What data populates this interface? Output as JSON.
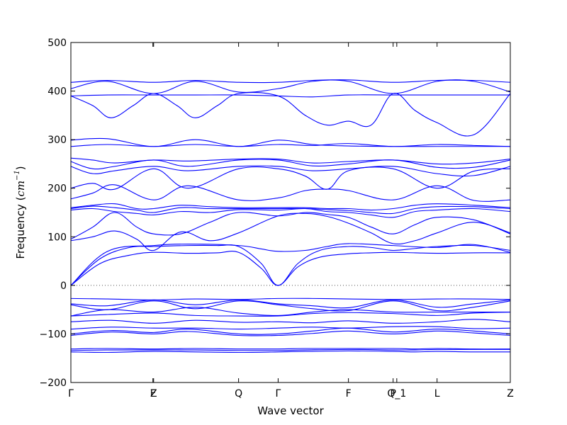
{
  "chart_data": {
    "type": "line",
    "title": "",
    "xlabel": "Wave vector",
    "ylabel": {
      "prefix": "Frequency (",
      "unit_base": "cm",
      "unit_exp": "−1",
      "suffix": ")"
    },
    "ylim": [
      -200,
      500
    ],
    "yticks": [
      -200,
      -100,
      0,
      100,
      200,
      300,
      400,
      500
    ],
    "xlim": [
      0,
      6.0
    ],
    "grid": false,
    "zero_line": 0,
    "line_color": "#0000ff",
    "zero_line_color": "#555555",
    "xticks": [
      {
        "x": 0.0,
        "label": "Γ"
      },
      {
        "x": 1.12,
        "label": "F"
      },
      {
        "x": 1.13,
        "label": "Z"
      },
      {
        "x": 2.29,
        "label": "Q"
      },
      {
        "x": 2.83,
        "label": "Γ"
      },
      {
        "x": 3.79,
        "label": "F"
      },
      {
        "x": 4.4,
        "label": "P"
      },
      {
        "x": 4.45,
        "label": "Q_1"
      },
      {
        "x": 5.0,
        "label": "L"
      },
      {
        "x": 6.0,
        "label": "Z"
      }
    ],
    "series": [
      {
        "x": [
          0,
          0.5,
          1.13,
          1.7,
          2.29,
          2.83,
          3.2,
          3.79,
          4.4,
          4.7,
          5.0,
          5.5,
          6.0
        ],
        "y": [
          -137,
          -138,
          -136,
          -137,
          -138,
          -137,
          -136,
          -135,
          -136,
          -137,
          -136,
          -137,
          -137
        ]
      },
      {
        "x": [
          0,
          0.5,
          1.13,
          1.7,
          2.29,
          2.83,
          3.2,
          3.79,
          4.4,
          4.7,
          5.0,
          5.5,
          6.0
        ],
        "y": [
          -134,
          -133,
          -133,
          -133,
          -134,
          -134,
          -133,
          -132,
          -133,
          -133,
          -132,
          -132,
          -132
        ]
      },
      {
        "x": [
          0,
          0.5,
          1.13,
          1.7,
          2.29,
          2.83,
          3.2,
          3.79,
          4.4,
          4.7,
          5.0,
          5.5,
          6.0
        ],
        "y": [
          -131,
          -130,
          -131,
          -130,
          -131,
          -131,
          -130,
          -130,
          -130,
          -131,
          -130,
          -131,
          -131
        ]
      },
      {
        "x": [
          0,
          0.55,
          1.13,
          1.6,
          2.29,
          2.83,
          3.3,
          3.79,
          4.4,
          5.0,
          5.5,
          6.0
        ],
        "y": [
          -103,
          -96,
          -100,
          -95,
          -103,
          -103,
          -99,
          -94,
          -100,
          -94,
          -98,
          -103
        ]
      },
      {
        "x": [
          0,
          0.55,
          1.13,
          1.6,
          2.29,
          2.83,
          3.3,
          3.79,
          4.4,
          5.0,
          5.5,
          6.0
        ],
        "y": [
          -100,
          -93,
          -97,
          -90,
          -100,
          -100,
          -94,
          -88,
          -96,
          -90,
          -94,
          -100
        ]
      },
      {
        "x": [
          0,
          0.55,
          1.13,
          1.7,
          2.29,
          2.83,
          3.3,
          3.79,
          4.4,
          5.0,
          5.5,
          6.0
        ],
        "y": [
          -90,
          -86,
          -88,
          -88,
          -90,
          -88,
          -86,
          -88,
          -85,
          -85,
          -89,
          -88
        ]
      },
      {
        "x": [
          0,
          0.55,
          1.13,
          1.7,
          2.29,
          2.83,
          3.3,
          3.79,
          4.4,
          5.0,
          5.5,
          6.0
        ],
        "y": [
          -75,
          -72,
          -78,
          -72,
          -76,
          -75,
          -77,
          -73,
          -78,
          -75,
          -70,
          -75
        ]
      },
      {
        "x": [
          0,
          0.5,
          1.13,
          1.7,
          2.29,
          2.83,
          3.3,
          3.79,
          4.4,
          5.0,
          5.5,
          6.0
        ],
        "y": [
          -63,
          -60,
          -57,
          -62,
          -63,
          -63,
          -58,
          -56,
          -58,
          -62,
          -57,
          -55
        ]
      },
      {
        "x": [
          0,
          0.5,
          1.13,
          1.7,
          2.29,
          2.83,
          3.3,
          3.79,
          4.4,
          5.0,
          5.5,
          6.0
        ],
        "y": [
          -63,
          -50,
          -55,
          -45,
          -57,
          -62,
          -55,
          -50,
          -55,
          -55,
          -55,
          -55
        ]
      },
      {
        "x": [
          0,
          0.5,
          1.13,
          1.7,
          2.29,
          2.83,
          3.3,
          3.79,
          4.4,
          5.0,
          5.5,
          6.0
        ],
        "y": [
          -40,
          -50,
          -32,
          -48,
          -32,
          -40,
          -48,
          -52,
          -32,
          -52,
          -45,
          -32
        ]
      },
      {
        "x": [
          0,
          0.5,
          1.13,
          1.7,
          2.29,
          2.83,
          3.3,
          3.79,
          4.4,
          5.0,
          5.5,
          6.0
        ],
        "y": [
          -38,
          -42,
          -30,
          -40,
          -30,
          -38,
          -42,
          -46,
          -30,
          -45,
          -38,
          -30
        ]
      },
      {
        "x": [
          0,
          0.5,
          1.13,
          1.7,
          2.29,
          2.83,
          3.3,
          3.79,
          4.4,
          5.0,
          5.5,
          6.0
        ],
        "y": [
          -27,
          -28,
          -30,
          -28,
          -29,
          -27,
          -27,
          -28,
          -29,
          -28,
          -28,
          -29
        ]
      },
      {
        "x": [
          0,
          0.4,
          0.8,
          1.13,
          1.6,
          2.0,
          2.29,
          2.6,
          2.83,
          3.1,
          3.4,
          3.79,
          4.1,
          4.4,
          4.7,
          5.0,
          5.5,
          6.0
        ],
        "y": [
          0,
          45,
          62,
          68,
          66,
          67,
          68,
          35,
          0,
          38,
          58,
          65,
          67,
          68,
          67,
          66,
          67,
          67
        ]
      },
      {
        "x": [
          0,
          0.4,
          0.8,
          1.13,
          1.6,
          2.0,
          2.29,
          2.6,
          2.83,
          3.1,
          3.4,
          3.79,
          4.1,
          4.4,
          4.7,
          5.0,
          5.5,
          6.0
        ],
        "y": [
          0,
          55,
          78,
          80,
          82,
          82,
          80,
          45,
          0,
          45,
          72,
          80,
          78,
          72,
          76,
          80,
          82,
          72
        ]
      },
      {
        "x": [
          0,
          0.5,
          1.13,
          1.6,
          2.29,
          2.6,
          2.83,
          3.2,
          3.5,
          3.79,
          4.4,
          5.0,
          5.5,
          6.0
        ],
        "y": [
          0,
          70,
          82,
          85,
          82,
          75,
          70,
          72,
          80,
          86,
          82,
          78,
          84,
          68
        ]
      },
      {
        "x": [
          0,
          0.3,
          0.6,
          0.9,
          1.13,
          1.5,
          1.9,
          2.29,
          2.83,
          3.2,
          3.5,
          3.79,
          4.1,
          4.4,
          4.7,
          5.0,
          5.5,
          6.0
        ],
        "y": [
          92,
          100,
          112,
          95,
          72,
          110,
          92,
          108,
          143,
          148,
          142,
          128,
          108,
          86,
          92,
          108,
          130,
          108
        ]
      },
      {
        "x": [
          0,
          0.3,
          0.6,
          0.9,
          1.13,
          1.5,
          1.9,
          2.29,
          2.83,
          3.2,
          3.5,
          3.79,
          4.1,
          4.4,
          4.7,
          5.0,
          5.5,
          6.0
        ],
        "y": [
          95,
          120,
          150,
          120,
          106,
          106,
          130,
          150,
          143,
          150,
          146,
          140,
          120,
          106,
          125,
          140,
          135,
          106
        ]
      },
      {
        "x": [
          0,
          0.3,
          0.6,
          0.9,
          1.13,
          1.5,
          1.9,
          2.29,
          2.83,
          3.2,
          3.5,
          3.79,
          4.1,
          4.4,
          4.7,
          5.0,
          5.5,
          6.0
        ],
        "y": [
          155,
          158,
          152,
          148,
          145,
          152,
          150,
          156,
          155,
          158,
          152,
          150,
          145,
          140,
          152,
          155,
          158,
          152
        ]
      },
      {
        "x": [
          0,
          0.3,
          0.6,
          0.9,
          1.13,
          1.5,
          1.9,
          2.29,
          2.83,
          3.2,
          3.5,
          3.79,
          4.1,
          4.4,
          4.7,
          5.0,
          5.5,
          6.0
        ],
        "y": [
          158,
          163,
          160,
          155,
          150,
          160,
          158,
          158,
          158,
          158,
          156,
          154,
          150,
          148,
          158,
          162,
          162,
          158
        ]
      },
      {
        "x": [
          0,
          0.3,
          0.6,
          0.9,
          1.13,
          1.5,
          1.9,
          2.29,
          2.83,
          3.2,
          3.5,
          3.79,
          4.1,
          4.4,
          4.7,
          5.0,
          5.5,
          6.0
        ],
        "y": [
          160,
          165,
          168,
          158,
          158,
          165,
          162,
          160,
          160,
          160,
          158,
          158,
          155,
          158,
          165,
          168,
          165,
          160
        ]
      },
      {
        "x": [
          0,
          0.3,
          0.6,
          1.13,
          1.6,
          2.29,
          2.83,
          3.2,
          3.5,
          3.79,
          4.4,
          5.0,
          5.5,
          6.0
        ],
        "y": [
          178,
          190,
          207,
          176,
          205,
          176,
          180,
          195,
          198,
          195,
          176,
          205,
          175,
          176
        ]
      },
      {
        "x": [
          0,
          0.3,
          0.6,
          1.13,
          1.6,
          2.29,
          2.83,
          3.2,
          3.5,
          3.79,
          4.4,
          5.0,
          5.5,
          6.0
        ],
        "y": [
          200,
          210,
          198,
          240,
          200,
          240,
          240,
          225,
          198,
          236,
          240,
          200,
          235,
          240
        ]
      },
      {
        "x": [
          0,
          0.3,
          0.6,
          1.13,
          1.6,
          2.29,
          2.83,
          3.3,
          3.79,
          4.4,
          5.0,
          5.5,
          6.0
        ],
        "y": [
          245,
          230,
          236,
          245,
          236,
          245,
          245,
          236,
          240,
          245,
          230,
          226,
          245
        ]
      },
      {
        "x": [
          0,
          0.3,
          0.6,
          1.13,
          1.6,
          2.29,
          2.83,
          3.3,
          3.79,
          4.4,
          5.0,
          5.5,
          6.0
        ],
        "y": [
          255,
          240,
          245,
          258,
          245,
          258,
          258,
          246,
          250,
          258,
          243,
          243,
          258
        ]
      },
      {
        "x": [
          0,
          0.3,
          0.6,
          1.13,
          1.6,
          2.29,
          2.83,
          3.3,
          3.79,
          4.4,
          5.0,
          5.5,
          6.0
        ],
        "y": [
          262,
          258,
          252,
          258,
          256,
          260,
          260,
          252,
          255,
          258,
          250,
          252,
          260
        ]
      },
      {
        "x": [
          0,
          0.5,
          1.13,
          1.7,
          2.29,
          2.83,
          3.3,
          3.79,
          4.4,
          5.0,
          5.5,
          6.0
        ],
        "y": [
          286,
          290,
          286,
          290,
          286,
          290,
          288,
          292,
          286,
          290,
          288,
          286
        ]
      },
      {
        "x": [
          0,
          0.5,
          1.13,
          1.7,
          2.29,
          2.83,
          3.3,
          3.79,
          4.4,
          5.0,
          5.5,
          6.0
        ],
        "y": [
          299,
          302,
          286,
          300,
          286,
          299,
          290,
          287,
          286,
          286,
          286,
          286
        ]
      },
      {
        "x": [
          0,
          0.3,
          0.55,
          0.85,
          1.13,
          1.45,
          1.7,
          2.0,
          2.29,
          2.83,
          3.2,
          3.5,
          3.79,
          4.1,
          4.4,
          4.7,
          5.0,
          5.5,
          6.0
        ],
        "y": [
          390,
          370,
          345,
          370,
          395,
          370,
          345,
          370,
          395,
          390,
          350,
          330,
          338,
          330,
          395,
          360,
          335,
          310,
          395
        ]
      },
      {
        "x": [
          0,
          0.5,
          1.13,
          1.7,
          2.29,
          2.83,
          3.3,
          3.79,
          4.4,
          5.0,
          5.5,
          6.0
        ],
        "y": [
          390,
          392,
          392,
          392,
          392,
          390,
          388,
          392,
          392,
          392,
          392,
          392
        ]
      },
      {
        "x": [
          0,
          0.5,
          1.13,
          1.7,
          2.29,
          2.83,
          3.3,
          3.79,
          4.4,
          5.0,
          5.5,
          6.0
        ],
        "y": [
          405,
          420,
          395,
          420,
          398,
          405,
          420,
          420,
          395,
          420,
          420,
          398
        ]
      },
      {
        "x": [
          0,
          0.5,
          1.13,
          1.7,
          2.29,
          2.83,
          3.3,
          3.79,
          4.4,
          5.0,
          5.5,
          6.0
        ],
        "y": [
          418,
          422,
          418,
          422,
          418,
          418,
          422,
          423,
          418,
          422,
          422,
          418
        ]
      }
    ]
  }
}
